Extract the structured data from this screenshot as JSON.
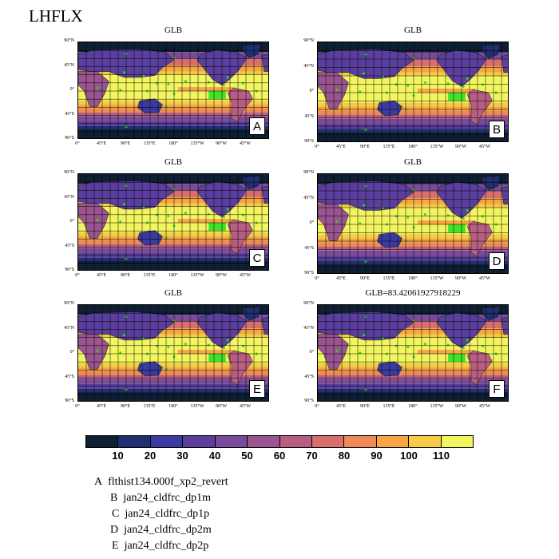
{
  "title": "LHFLX",
  "chart_data": {
    "type": "heatmap",
    "variable": "LHFLX",
    "panels": [
      {
        "letter": "A",
        "title": "GLB",
        "case": "flthist134.000f_xp2_revert"
      },
      {
        "letter": "B",
        "title": "GLB",
        "case": "jan24_cldfrc_dp1m"
      },
      {
        "letter": "C",
        "title": "GLB",
        "case": "jan24_cldfrc_dp1p"
      },
      {
        "letter": "D",
        "title": "GLB",
        "case": "jan24_cldfrc_dp2m"
      },
      {
        "letter": "E",
        "title": "GLB",
        "case": "jan24_cldfrc_dp2p"
      },
      {
        "letter": "F",
        "title": "GLB=83.42061927918229",
        "case": ""
      }
    ],
    "lat_ticks": [
      "90°N",
      "45°N",
      "0°",
      "45°S",
      "90°S"
    ],
    "lon_ticks": [
      "0°",
      "45°E",
      "90°E",
      "135°E",
      "180°",
      "135°W",
      "90°W",
      "45°W"
    ],
    "colorbar": {
      "levels": [
        10,
        20,
        30,
        40,
        50,
        60,
        70,
        80,
        90,
        100,
        110
      ],
      "colors": [
        "#0f1f33",
        "#1f2f6f",
        "#3a3aa0",
        "#5b3f9e",
        "#7a4b9a",
        "#9a5490",
        "#b85e84",
        "#d86f6e",
        "#ee8a55",
        "#f7a645",
        "#f5cc45",
        "#f2f560"
      ]
    }
  },
  "legend": [
    {
      "letter": "A",
      "case": "flthist134.000f_xp2_revert"
    },
    {
      "letter": "B",
      "case": "jan24_cldfrc_dp1m"
    },
    {
      "letter": "C",
      "case": "jan24_cldfrc_dp1p"
    },
    {
      "letter": "D",
      "case": "jan24_cldfrc_dp2m"
    },
    {
      "letter": "E",
      "case": "jan24_cldfrc_dp2p"
    }
  ]
}
